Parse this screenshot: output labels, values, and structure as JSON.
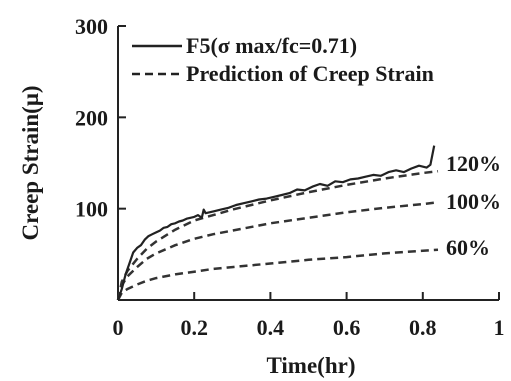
{
  "chart_data": {
    "type": "line",
    "xlabel": "Time(hr)",
    "ylabel": "Creep Strain(μ)",
    "xlim": [
      0,
      1
    ],
    "ylim": [
      0,
      300
    ],
    "x_ticks": [
      "0",
      "0.2",
      "0.4",
      "0.6",
      "0.8",
      "1"
    ],
    "y_ticks": [
      "100",
      "200",
      "300"
    ],
    "grid": false,
    "legend": {
      "placement": "top",
      "measured_label": "F5(σ max/fc=0.71)",
      "prediction_label": "Prediction of Creep Strain"
    },
    "measured": {
      "name": "F5(σ max/fc=0.71)",
      "style": "solid",
      "x": [
        0,
        0.01,
        0.02,
        0.03,
        0.04,
        0.05,
        0.06,
        0.07,
        0.08,
        0.09,
        0.1,
        0.11,
        0.12,
        0.13,
        0.14,
        0.15,
        0.16,
        0.17,
        0.18,
        0.19,
        0.2,
        0.21,
        0.22,
        0.225,
        0.23,
        0.25,
        0.27,
        0.29,
        0.31,
        0.33,
        0.35,
        0.37,
        0.39,
        0.41,
        0.43,
        0.45,
        0.47,
        0.49,
        0.51,
        0.53,
        0.55,
        0.57,
        0.59,
        0.61,
        0.63,
        0.65,
        0.67,
        0.69,
        0.71,
        0.73,
        0.75,
        0.77,
        0.79,
        0.81,
        0.82,
        0.83
      ],
      "y": [
        0,
        12,
        28,
        40,
        52,
        57,
        60,
        66,
        70,
        72,
        74,
        76,
        79,
        80,
        83,
        84,
        86,
        87,
        89,
        90,
        91,
        93,
        90,
        99,
        95,
        97,
        99,
        101,
        104,
        106,
        108,
        110,
        111,
        113,
        115,
        117,
        121,
        120,
        124,
        127,
        125,
        130,
        129,
        132,
        133,
        135,
        137,
        136,
        140,
        142,
        140,
        144,
        147,
        145,
        148,
        169
      ]
    },
    "predictions": [
      {
        "label": "120%",
        "style": "dashed",
        "x": [
          0,
          0.01,
          0.025,
          0.05,
          0.075,
          0.1,
          0.15,
          0.2,
          0.25,
          0.3,
          0.4,
          0.5,
          0.6,
          0.7,
          0.8,
          0.84
        ],
        "y": [
          0,
          20,
          32,
          45,
          56,
          64,
          77,
          87,
          93,
          99,
          109,
          118,
          126,
          133,
          139,
          141
        ]
      },
      {
        "label": "100%",
        "style": "dashed",
        "x": [
          0,
          0.01,
          0.025,
          0.05,
          0.075,
          0.1,
          0.15,
          0.2,
          0.25,
          0.3,
          0.4,
          0.5,
          0.6,
          0.7,
          0.8,
          0.84
        ],
        "y": [
          0,
          16,
          26,
          36,
          45,
          51,
          60,
          67,
          72,
          76,
          84,
          90,
          96,
          101,
          105,
          107
        ]
      },
      {
        "label": "60%",
        "style": "dashed",
        "x": [
          0,
          0.01,
          0.025,
          0.05,
          0.075,
          0.1,
          0.15,
          0.2,
          0.25,
          0.3,
          0.4,
          0.5,
          0.6,
          0.7,
          0.8,
          0.84
        ],
        "y": [
          0,
          8,
          12,
          17,
          21,
          24,
          28,
          31,
          34,
          36,
          40,
          44,
          47,
          51,
          54,
          55
        ]
      }
    ]
  }
}
